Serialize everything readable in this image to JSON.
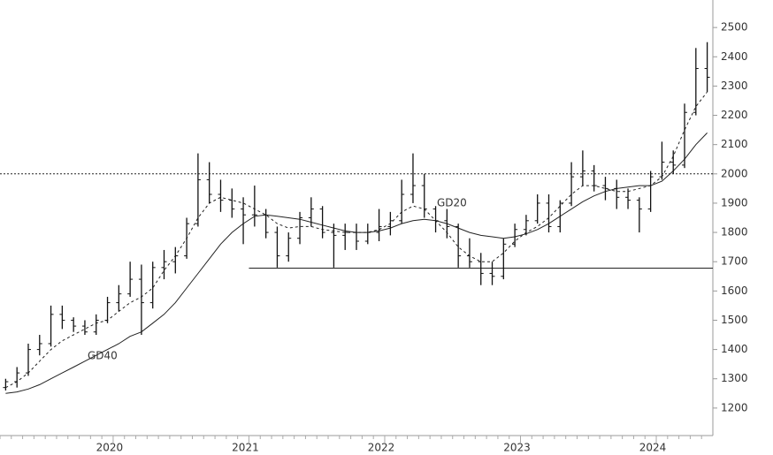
{
  "chart_data": {
    "type": "ohlc",
    "categories": [
      null,
      null,
      null,
      null,
      null,
      null,
      null,
      null,
      null,
      null,
      "2020",
      null,
      null,
      null,
      null,
      null,
      null,
      null,
      null,
      null,
      null,
      null,
      "2021",
      null,
      null,
      null,
      null,
      null,
      null,
      null,
      null,
      null,
      null,
      null,
      "2022",
      null,
      null,
      null,
      null,
      null,
      null,
      null,
      null,
      null,
      null,
      null,
      "2023",
      null,
      null,
      null,
      null,
      null,
      null,
      null,
      null,
      null,
      null,
      null,
      "2024",
      null,
      null,
      null,
      null
    ],
    "open": [
      1270,
      1290,
      1320,
      1400,
      1420,
      1520,
      1500,
      1480,
      1460,
      1500,
      1560,
      1590,
      1640,
      1560,
      1680,
      1700,
      1720,
      1830,
      1980,
      1930,
      1910,
      1880,
      1860,
      1860,
      1800,
      1720,
      1780,
      1850,
      1880,
      1800,
      1790,
      1800,
      1770,
      1800,
      1820,
      1840,
      1930,
      1960,
      1880,
      1840,
      1820,
      1720,
      1700,
      1660,
      1650,
      1760,
      1810,
      1840,
      1900,
      1820,
      1900,
      1990,
      2010,
      1960,
      1950,
      1920,
      1910,
      1880,
      1990,
      2040,
      2030,
      2210,
      2360
    ],
    "high": [
      1300,
      1340,
      1420,
      1450,
      1550,
      1550,
      1510,
      1500,
      1520,
      1580,
      1620,
      1700,
      1690,
      1700,
      1740,
      1750,
      1850,
      2070,
      2040,
      1980,
      1950,
      1920,
      1960,
      1880,
      1820,
      1800,
      1870,
      1920,
      1890,
      1830,
      1830,
      1830,
      1830,
      1880,
      1870,
      1980,
      2070,
      2000,
      1890,
      1880,
      1830,
      1780,
      1730,
      1700,
      1780,
      1830,
      1860,
      1930,
      1930,
      1910,
      2040,
      2080,
      2030,
      1990,
      1980,
      1950,
      1920,
      2010,
      2110,
      2080,
      2240,
      2430,
      2450
    ],
    "low": [
      1260,
      1270,
      1310,
      1380,
      1410,
      1470,
      1460,
      1450,
      1450,
      1490,
      1530,
      1580,
      1450,
      1540,
      1640,
      1660,
      1710,
      1820,
      1900,
      1870,
      1850,
      1760,
      1820,
      1780,
      1680,
      1700,
      1760,
      1820,
      1780,
      1680,
      1740,
      1740,
      1760,
      1770,
      1790,
      1830,
      1900,
      1850,
      1800,
      1780,
      1680,
      1680,
      1620,
      1620,
      1640,
      1750,
      1790,
      1830,
      1800,
      1800,
      1890,
      1960,
      1940,
      1910,
      1880,
      1880,
      1800,
      1870,
      1980,
      2000,
      2020,
      2200,
      2280
    ],
    "close": [
      1290,
      1320,
      1400,
      1420,
      1520,
      1500,
      1480,
      1460,
      1500,
      1560,
      1590,
      1640,
      1560,
      1680,
      1700,
      1720,
      1830,
      1980,
      1930,
      1910,
      1880,
      1860,
      1860,
      1800,
      1720,
      1780,
      1850,
      1880,
      1800,
      1790,
      1800,
      1770,
      1800,
      1820,
      1840,
      1930,
      1960,
      1880,
      1840,
      1820,
      1720,
      1700,
      1660,
      1650,
      1760,
      1810,
      1840,
      1900,
      1820,
      1900,
      1990,
      2010,
      1960,
      1950,
      1920,
      1910,
      1880,
      1990,
      2040,
      2030,
      2210,
      2360,
      2330
    ],
    "series": [
      {
        "name": "GD20",
        "color": "#222",
        "dash": true,
        "values": [
          1270,
          1290,
          1320,
          1360,
          1400,
          1430,
          1450,
          1470,
          1490,
          1500,
          1530,
          1560,
          1580,
          1610,
          1670,
          1720,
          1780,
          1850,
          1900,
          1920,
          1910,
          1900,
          1880,
          1860,
          1830,
          1815,
          1820,
          1820,
          1810,
          1805,
          1800,
          1800,
          1800,
          1810,
          1830,
          1870,
          1890,
          1880,
          1840,
          1800,
          1750,
          1720,
          1700,
          1700,
          1730,
          1770,
          1800,
          1820,
          1850,
          1890,
          1930,
          1960,
          1960,
          1950,
          1940,
          1940,
          1950,
          1960,
          1990,
          2060,
          2150,
          2230,
          2280
        ]
      },
      {
        "name": "GD40",
        "color": "#222",
        "dash": false,
        "values": [
          1250,
          1255,
          1265,
          1280,
          1300,
          1320,
          1340,
          1360,
          1380,
          1400,
          1420,
          1445,
          1460,
          1490,
          1520,
          1560,
          1610,
          1660,
          1710,
          1760,
          1800,
          1830,
          1855,
          1860,
          1855,
          1850,
          1845,
          1835,
          1825,
          1815,
          1805,
          1800,
          1800,
          1805,
          1815,
          1830,
          1840,
          1845,
          1840,
          1830,
          1815,
          1800,
          1790,
          1785,
          1780,
          1785,
          1795,
          1810,
          1830,
          1855,
          1880,
          1905,
          1925,
          1940,
          1950,
          1955,
          1960,
          1960,
          1975,
          2010,
          2050,
          2100,
          2140
        ]
      }
    ],
    "reference_lines": [
      {
        "value": 2000,
        "style": "dotted",
        "from_index": 0
      },
      {
        "value": 1678,
        "style": "solid",
        "from_index": 22
      }
    ],
    "ylim": [
      1106,
      2594
    ],
    "yticks": [
      1200,
      1300,
      1400,
      1500,
      1600,
      1700,
      1800,
      1900,
      2000,
      2100,
      2200,
      2300,
      2400,
      2500
    ],
    "axis_side": "right",
    "bar_color": "#111"
  }
}
